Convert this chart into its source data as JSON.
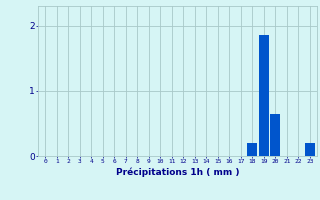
{
  "categories": [
    0,
    1,
    2,
    3,
    4,
    5,
    6,
    7,
    8,
    9,
    10,
    11,
    12,
    13,
    14,
    15,
    16,
    17,
    18,
    19,
    20,
    21,
    22,
    23
  ],
  "values": [
    0,
    0,
    0,
    0,
    0,
    0,
    0,
    0,
    0,
    0,
    0,
    0,
    0,
    0,
    0,
    0,
    0,
    0,
    0.2,
    1.85,
    0.65,
    0,
    0,
    0.2
  ],
  "bar_color": "#0055cc",
  "background_color": "#d6f5f5",
  "grid_color": "#a8c8c8",
  "xlabel": "Précipitations 1h ( mm )",
  "xlabel_color": "#00008b",
  "tick_color": "#00008b",
  "ylim": [
    0,
    2.3
  ],
  "yticks": [
    0,
    1,
    2
  ],
  "bar_width": 0.85
}
